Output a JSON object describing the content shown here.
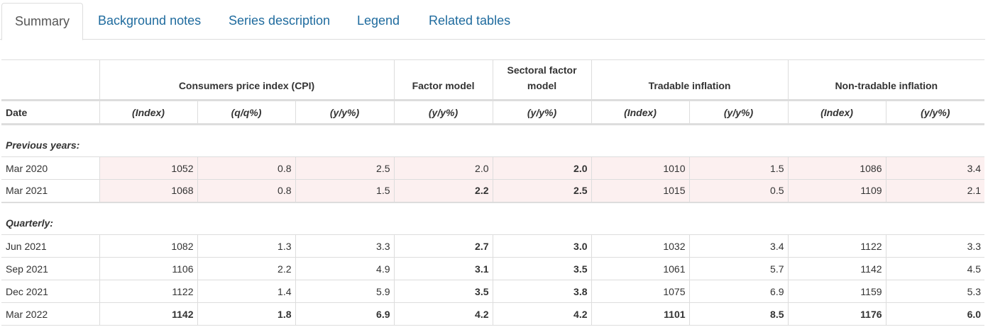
{
  "tabs": [
    {
      "label": "Summary",
      "active": true
    },
    {
      "label": "Background notes",
      "active": false
    },
    {
      "label": "Series description",
      "active": false
    },
    {
      "label": "Legend",
      "active": false
    },
    {
      "label": "Related tables",
      "active": false
    }
  ],
  "table": {
    "group_headers": [
      "",
      "Consumers price index (CPI)",
      "Factor model",
      "Sectoral factor model",
      "Tradable inflation",
      "Non-tradable inflation"
    ],
    "sub_headers": [
      "Date",
      "(Index)",
      "(q/q%)",
      "(y/y%)",
      "(y/y%)",
      "(y/y%)",
      "(Index)",
      "(y/y%)",
      "(Index)",
      "(y/y%)"
    ],
    "sections": [
      {
        "label": "Previous years:",
        "rows": [
          [
            "Mar 2020",
            "1052",
            "0.8",
            "2.5",
            "2.0",
            "2.0",
            "1010",
            "1.5",
            "1086",
            "3.4"
          ],
          [
            "Mar 2021",
            "1068",
            "0.8",
            "1.5",
            "2.2",
            "2.5",
            "1015",
            "0.5",
            "1109",
            "2.1"
          ]
        ]
      },
      {
        "label": "Quarterly:",
        "rows": [
          [
            "Jun 2021",
            "1082",
            "1.3",
            "3.3",
            "2.7",
            "3.0",
            "1032",
            "3.4",
            "1122",
            "3.3"
          ],
          [
            "Sep 2021",
            "1106",
            "2.2",
            "4.9",
            "3.1",
            "3.5",
            "1061",
            "5.7",
            "1142",
            "4.5"
          ],
          [
            "Dec 2021",
            "1122",
            "1.4",
            "5.9",
            "3.5",
            "3.8",
            "1075",
            "6.9",
            "1159",
            "5.3"
          ],
          [
            "Mar 2022",
            "1142",
            "1.8",
            "6.9",
            "4.2",
            "4.2",
            "1101",
            "8.5",
            "1176",
            "6.0"
          ]
        ]
      }
    ]
  },
  "colors": {
    "link": "#1f6b9e",
    "highlight_row": "#fcf0f0",
    "border": "#dddddd"
  }
}
